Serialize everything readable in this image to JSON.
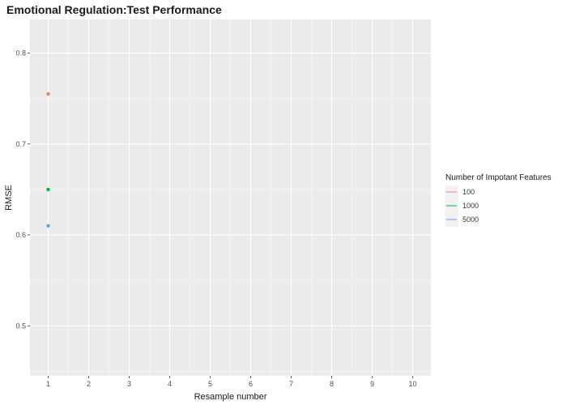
{
  "chart_data": {
    "type": "scatter",
    "title": "Emotional Regulation:Test Performance",
    "xlabel": "Resample number",
    "ylabel": "RMSE",
    "x_ticks": [
      1,
      2,
      3,
      4,
      5,
      6,
      7,
      8,
      9,
      10
    ],
    "y_ticks": [
      0.5,
      0.6,
      0.7,
      0.8
    ],
    "xlim": [
      0.55,
      10.45
    ],
    "ylim": [
      0.445,
      0.837
    ],
    "grid": true,
    "legend": {
      "title": "Number of Impotant Features",
      "position": "right"
    },
    "series": [
      {
        "name": "100",
        "color": "#F8766D",
        "points": [
          {
            "x": 1,
            "y": 0.755
          }
        ]
      },
      {
        "name": "1000",
        "color": "#00BA38",
        "points": [
          {
            "x": 1,
            "y": 0.65
          }
        ]
      },
      {
        "name": "5000",
        "color": "#619CFF",
        "points": [
          {
            "x": 1,
            "y": 0.61
          }
        ]
      }
    ]
  }
}
